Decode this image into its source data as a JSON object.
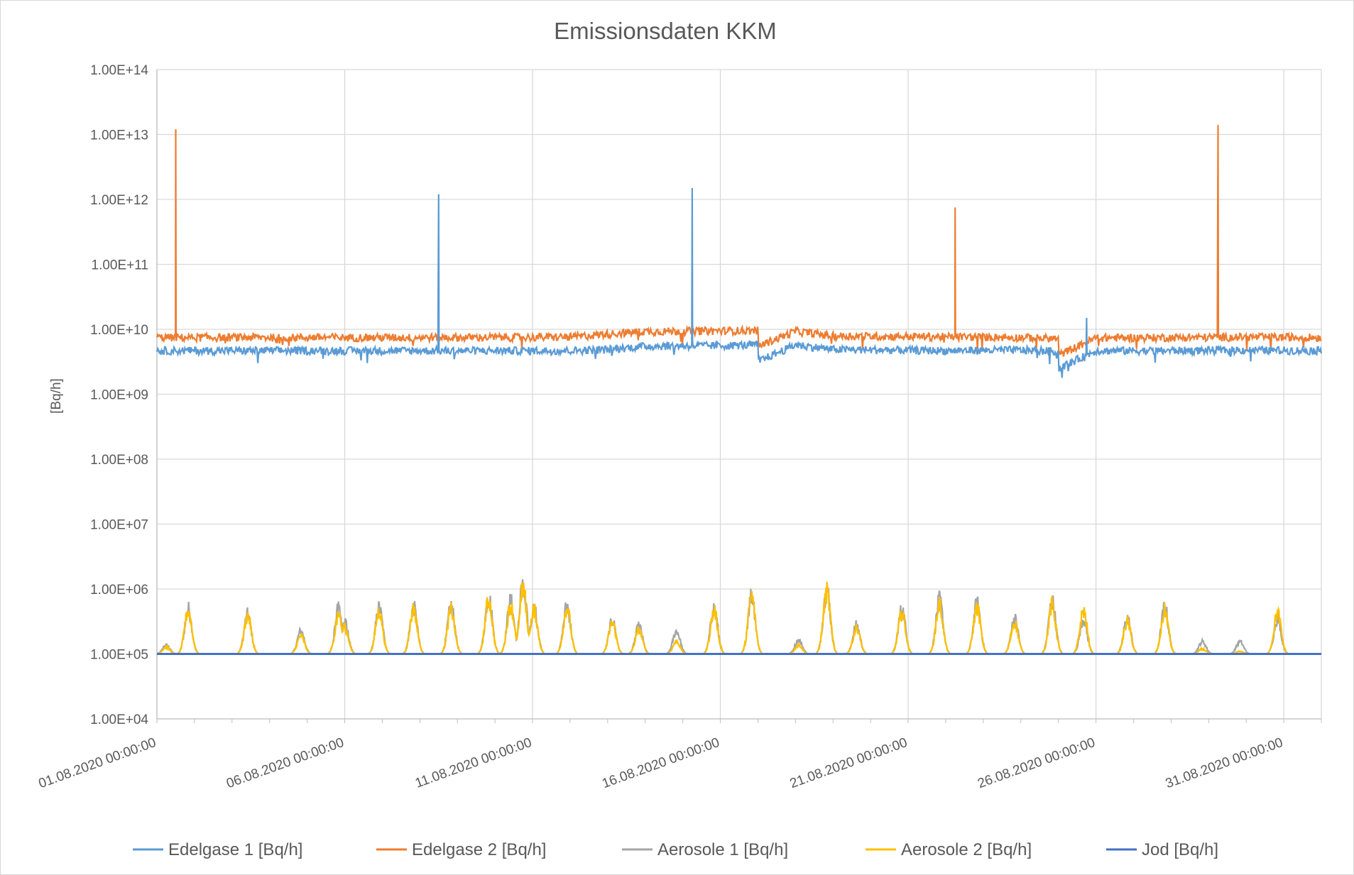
{
  "chart_data": {
    "type": "line",
    "title": "Emissionsdaten KKM",
    "ylabel": "[Bq/h]",
    "xlabel": "",
    "y_scale": "log",
    "ylim": [
      10000,
      100000000000000
    ],
    "y_ticks": [
      "1.00E+04",
      "1.00E+05",
      "1.00E+06",
      "1.00E+07",
      "1.00E+08",
      "1.00E+09",
      "1.00E+10",
      "1.00E+11",
      "1.00E+12",
      "1.00E+13",
      "1.00E+14"
    ],
    "xlim": [
      "01.08.2020 00:00:00",
      "01.09.2020 00:00:00"
    ],
    "x_ticks": [
      "01.08.2020 00:00:00",
      "06.08.2020 00:00:00",
      "11.08.2020 00:00:00",
      "16.08.2020 00:00:00",
      "21.08.2020 00:00:00",
      "26.08.2020 00:00:00",
      "31.08.2020 00:00:00"
    ],
    "grid": true,
    "legend_position": "bottom",
    "series": [
      {
        "name": "Edelgase 1 [Bq/h]",
        "color": "#5b9bd5",
        "baseline": 4700000000,
        "x": [
          "01.08.2020",
          "05.08.2020",
          "09.08.2020",
          "12.08.2020",
          "13.08.2020",
          "14.08.2020",
          "15.08.2020",
          "16.08.2020",
          "17.08.2020",
          "17.75.08.2020",
          "18.08.2020",
          "19.08.2020",
          "22.08.2020",
          "24.08.2020",
          "25.08.2020",
          "25.5.08.2020",
          "26.08.2020",
          "28.08.2020",
          "30.08.2020",
          "01.09.2020"
        ],
        "values": [
          4700000000,
          4700000000,
          4700000000,
          4700000000,
          4900000000,
          5500000000,
          5600000000,
          5600000000,
          5800000000,
          3200000000,
          5800000000,
          4900000000,
          4700000000,
          4800000000,
          4600000000,
          2500000000,
          4700000000,
          4700000000,
          4800000000,
          4700000000
        ],
        "spikes": [
          {
            "x": "08.08.2020 12:00:00",
            "value": 1200000000000
          },
          {
            "x": "15.08.2020 06:00:00",
            "value": 1500000000000
          },
          {
            "x": "25.08.2020 18:00:00",
            "value": 15000000000
          }
        ]
      },
      {
        "name": "Edelgase 2 [Bq/h]",
        "color": "#ed7d31",
        "baseline": 7500000000,
        "x": [
          "01.08.2020",
          "05.08.2020",
          "09.08.2020",
          "12.08.2020",
          "13.08.2020",
          "14.08.2020",
          "15.08.2020",
          "16.08.2020",
          "17.08.2020",
          "17.75.08.2020",
          "18.08.2020",
          "19.08.2020",
          "22.08.2020",
          "24.08.2020",
          "25.08.2020",
          "25.5.08.2020",
          "26.08.2020",
          "28.08.2020",
          "30.08.2020",
          "01.09.2020"
        ],
        "values": [
          7500000000,
          7500000000,
          7500000000,
          7600000000,
          8500000000,
          9300000000,
          9400000000,
          9500000000,
          9600000000,
          5500000000,
          9400000000,
          7900000000,
          7700000000,
          7500000000,
          7200000000,
          4000000000,
          7400000000,
          7500000000,
          7600000000,
          7500000000
        ],
        "spikes": [
          {
            "x": "01.08.2020 12:00:00",
            "value": 12000000000000
          },
          {
            "x": "22.08.2020 06:00:00",
            "value": 750000000000
          },
          {
            "x": "29.08.2020 06:00:00",
            "value": 14000000000000
          }
        ]
      },
      {
        "name": "Aerosole 1 [Bq/h]",
        "color": "#a5a5a5",
        "baseline": 100000,
        "peaks": [
          {
            "x": "01.08.2020 06:00:00",
            "value": 140000
          },
          {
            "x": "01.08.2020 20:00:00",
            "value": 560000
          },
          {
            "x": "03.08.2020 10:00:00",
            "value": 450000
          },
          {
            "x": "04.08.2020 20:00:00",
            "value": 240000
          },
          {
            "x": "05.08.2020 20:00:00",
            "value": 550000
          },
          {
            "x": "06.08.2020 00:00:00",
            "value": 330000
          },
          {
            "x": "06.08.2020 22:00:00",
            "value": 580000
          },
          {
            "x": "07.08.2020 20:00:00",
            "value": 600000
          },
          {
            "x": "08.08.2020 20:00:00",
            "value": 620000
          },
          {
            "x": "09.08.2020 20:00:00",
            "value": 900000
          },
          {
            "x": "10.08.2020 10:00:00",
            "value": 750000
          },
          {
            "x": "10.08.2020 18:00:00",
            "value": 1450000
          },
          {
            "x": "11.08.2020 01:00:00",
            "value": 580000
          },
          {
            "x": "11.08.2020 22:00:00",
            "value": 640000
          },
          {
            "x": "13.08.2020 03:00:00",
            "value": 360000
          },
          {
            "x": "13.08.2020 20:00:00",
            "value": 290000
          },
          {
            "x": "14.08.2020 20:00:00",
            "value": 240000
          },
          {
            "x": "15.08.2020 20:00:00",
            "value": 580000
          },
          {
            "x": "16.08.2020 20:00:00",
            "value": 980000
          },
          {
            "x": "18.08.2020 02:00:00",
            "value": 170000
          },
          {
            "x": "18.08.2020 20:00:00",
            "value": 1200000
          },
          {
            "x": "19.08.2020 15:00:00",
            "value": 300000
          },
          {
            "x": "20.08.2020 20:00:00",
            "value": 560000
          },
          {
            "x": "21.08.2020 20:00:00",
            "value": 770000
          },
          {
            "x": "22.08.2020 20:00:00",
            "value": 690000
          },
          {
            "x": "23.08.2020 20:00:00",
            "value": 390000
          },
          {
            "x": "24.08.2020 20:00:00",
            "value": 740000
          },
          {
            "x": "25.08.2020 16:00:00",
            "value": 380000
          },
          {
            "x": "26.08.2020 20:00:00",
            "value": 400000
          },
          {
            "x": "27.08.2020 20:00:00",
            "value": 600000
          },
          {
            "x": "28.08.2020 20:00:00",
            "value": 160000
          },
          {
            "x": "29.08.2020 20:00:00",
            "value": 160000
          },
          {
            "x": "30.08.2020 20:00:00",
            "value": 390000
          }
        ]
      },
      {
        "name": "Aerosole 2 [Bq/h]",
        "color": "#ffc000",
        "baseline": 100000,
        "peaks": [
          {
            "x": "01.08.2020 06:00:00",
            "value": 130000
          },
          {
            "x": "01.08.2020 20:00:00",
            "value": 520000
          },
          {
            "x": "03.08.2020 10:00:00",
            "value": 430000
          },
          {
            "x": "04.08.2020 20:00:00",
            "value": 200000
          },
          {
            "x": "05.08.2020 20:00:00",
            "value": 420000
          },
          {
            "x": "06.08.2020 00:00:00",
            "value": 280000
          },
          {
            "x": "06.08.2020 22:00:00",
            "value": 520000
          },
          {
            "x": "07.08.2020 20:00:00",
            "value": 560000
          },
          {
            "x": "08.08.2020 20:00:00",
            "value": 540000
          },
          {
            "x": "09.08.2020 20:00:00",
            "value": 780000
          },
          {
            "x": "10.08.2020 10:00:00",
            "value": 640000
          },
          {
            "x": "10.08.2020 18:00:00",
            "value": 1250000
          },
          {
            "x": "11.08.2020 01:00:00",
            "value": 520000
          },
          {
            "x": "11.08.2020 22:00:00",
            "value": 580000
          },
          {
            "x": "13.08.2020 03:00:00",
            "value": 330000
          },
          {
            "x": "13.08.2020 20:00:00",
            "value": 250000
          },
          {
            "x": "14.08.2020 20:00:00",
            "value": 160000
          },
          {
            "x": "15.08.2020 20:00:00",
            "value": 520000
          },
          {
            "x": "16.08.2020 20:00:00",
            "value": 880000
          },
          {
            "x": "18.08.2020 02:00:00",
            "value": 140000
          },
          {
            "x": "18.08.2020 20:00:00",
            "value": 1050000
          },
          {
            "x": "19.08.2020 15:00:00",
            "value": 270000
          },
          {
            "x": "20.08.2020 20:00:00",
            "value": 480000
          },
          {
            "x": "21.08.2020 20:00:00",
            "value": 650000
          },
          {
            "x": "22.08.2020 20:00:00",
            "value": 590000
          },
          {
            "x": "23.08.2020 20:00:00",
            "value": 330000
          },
          {
            "x": "24.08.2020 20:00:00",
            "value": 640000
          },
          {
            "x": "25.08.2020 16:00:00",
            "value": 520000
          },
          {
            "x": "26.08.2020 20:00:00",
            "value": 340000
          },
          {
            "x": "27.08.2020 20:00:00",
            "value": 520000
          },
          {
            "x": "28.08.2020 20:00:00",
            "value": 120000
          },
          {
            "x": "29.08.2020 20:00:00",
            "value": 110000
          },
          {
            "x": "30.08.2020 20:00:00",
            "value": 480000
          }
        ]
      },
      {
        "name": "Jod [Bq/h]",
        "color": "#4472c4",
        "x": [
          "01.08.2020 00:00:00",
          "01.09.2020 00:00:00"
        ],
        "values": [
          100000,
          100000
        ]
      }
    ]
  }
}
